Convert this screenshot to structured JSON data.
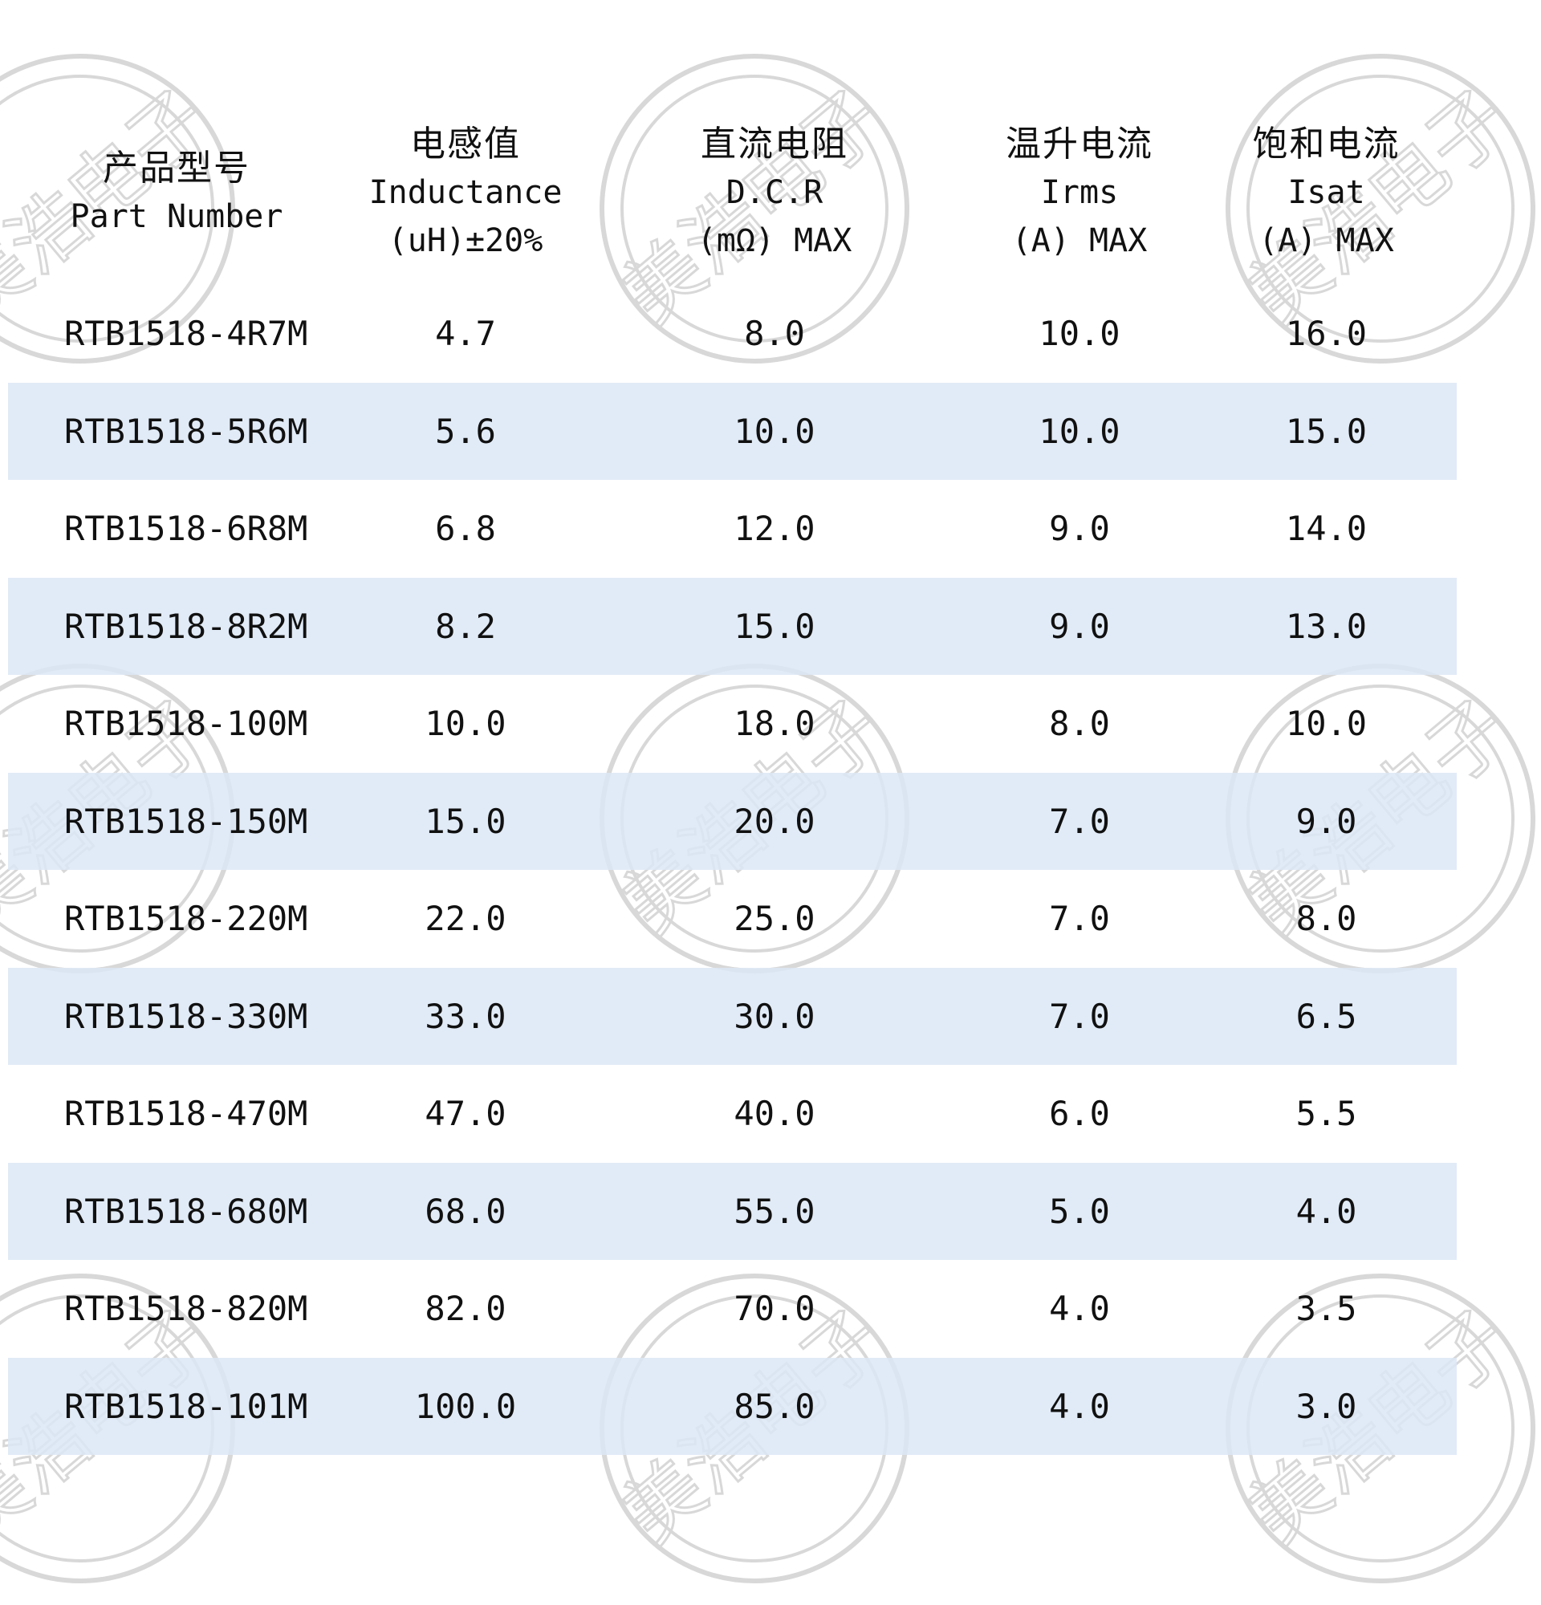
{
  "header": {
    "part": {
      "zh": "产品型号",
      "en1": "Part Number",
      "en2": ""
    },
    "inductance": {
      "zh": "电感值",
      "en1": "Inductance",
      "en2": "(uH)±20%"
    },
    "dcr": {
      "zh": "直流电阻",
      "en1": "D.C.R",
      "en2": "(mΩ) MAX"
    },
    "irms": {
      "zh": "温升电流",
      "en1": "Irms",
      "en2": "(A) MAX"
    },
    "isat": {
      "zh": "饱和电流",
      "en1": "Isat",
      "en2": "(A) MAX"
    }
  },
  "rows": [
    {
      "part": "RTB1518-4R7M",
      "inductance": "4.7",
      "dcr": "8.0",
      "irms": "10.0",
      "isat": "16.0"
    },
    {
      "part": "RTB1518-5R6M",
      "inductance": "5.6",
      "dcr": "10.0",
      "irms": "10.0",
      "isat": "15.0"
    },
    {
      "part": "RTB1518-6R8M",
      "inductance": "6.8",
      "dcr": "12.0",
      "irms": "9.0",
      "isat": "14.0"
    },
    {
      "part": "RTB1518-8R2M",
      "inductance": "8.2",
      "dcr": "15.0",
      "irms": "9.0",
      "isat": "13.0"
    },
    {
      "part": "RTB1518-100M",
      "inductance": "10.0",
      "dcr": "18.0",
      "irms": "8.0",
      "isat": "10.0"
    },
    {
      "part": "RTB1518-150M",
      "inductance": "15.0",
      "dcr": "20.0",
      "irms": "7.0",
      "isat": "9.0"
    },
    {
      "part": "RTB1518-220M",
      "inductance": "22.0",
      "dcr": "25.0",
      "irms": "7.0",
      "isat": "8.0"
    },
    {
      "part": "RTB1518-330M",
      "inductance": "33.0",
      "dcr": "30.0",
      "irms": "7.0",
      "isat": "6.5"
    },
    {
      "part": "RTB1518-470M",
      "inductance": "47.0",
      "dcr": "40.0",
      "irms": "6.0",
      "isat": "5.5"
    },
    {
      "part": "RTB1518-680M",
      "inductance": "68.0",
      "dcr": "55.0",
      "irms": "5.0",
      "isat": "4.0"
    },
    {
      "part": "RTB1518-820M",
      "inductance": "82.0",
      "dcr": "70.0",
      "irms": "4.0",
      "isat": "3.5"
    },
    {
      "part": "RTB1518-101M",
      "inductance": "100.0",
      "dcr": "85.0",
      "irms": "4.0",
      "isat": "3.0"
    }
  ],
  "watermark": {
    "text": "美浩电子",
    "color": "#d8d8d8"
  },
  "colors": {
    "row_shade": "#dce8f6",
    "text": "#111111"
  }
}
